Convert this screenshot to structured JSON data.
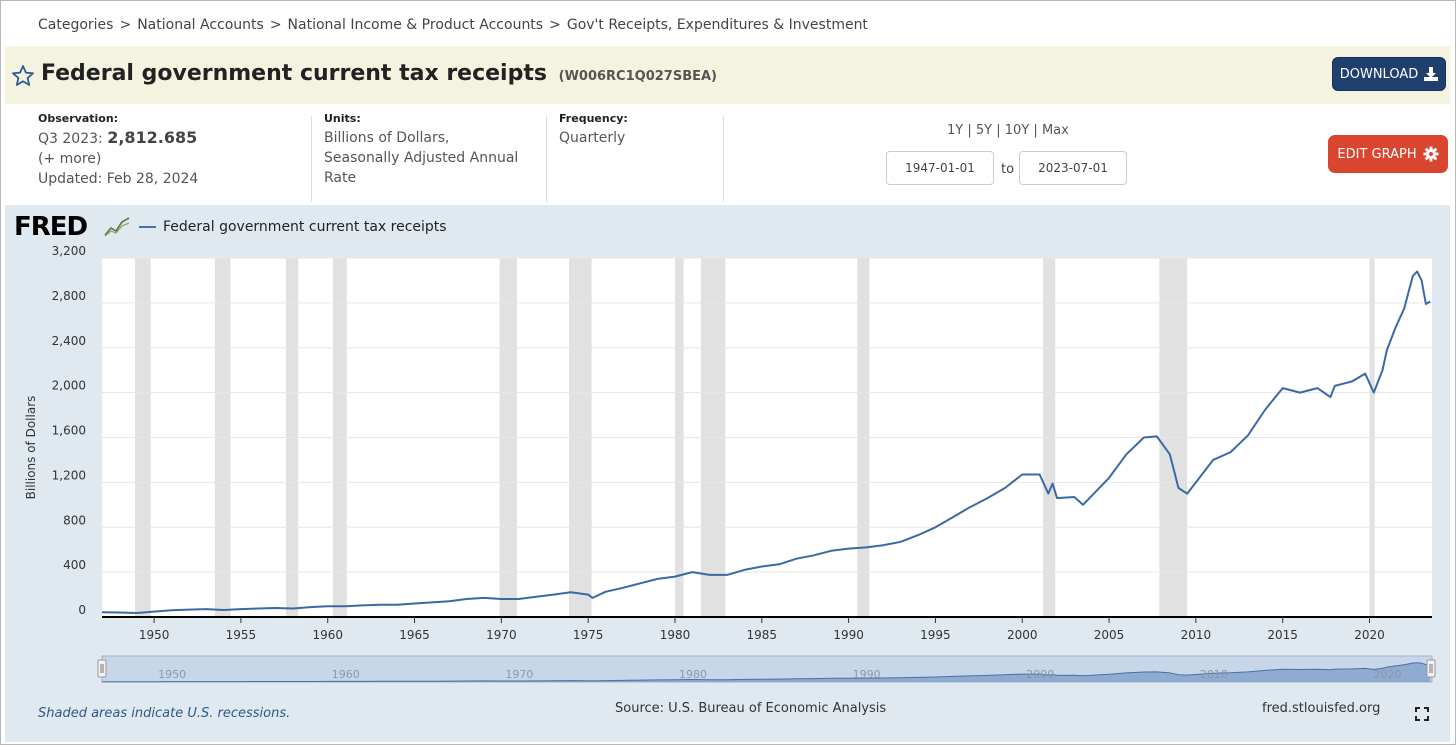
{
  "breadcrumb": [
    "Categories",
    "National Accounts",
    "National Income & Product Accounts",
    "Gov't Receipts, Expenditures & Investment"
  ],
  "breadcrumb_sep": ">",
  "header": {
    "title": "Federal government current tax receipts",
    "series_id": "(W006RC1Q027SBEA)",
    "download_label": "DOWNLOAD",
    "edit_label": "EDIT GRAPH"
  },
  "observation": {
    "label": "Observation:",
    "period": "Q3 2023:",
    "value": "2,812.685",
    "more": "(+ more)",
    "updated": "Updated: Feb 28, 2024"
  },
  "units": {
    "label": "Units:",
    "line1": "Billions of Dollars,",
    "line2": "Seasonally Adjusted Annual",
    "line3": "Rate"
  },
  "frequency": {
    "label": "Frequency:",
    "value": "Quarterly"
  },
  "range": {
    "options": [
      "1Y",
      "5Y",
      "10Y",
      "Max"
    ],
    "sep": "|",
    "start": "1947-01-01",
    "to": "to",
    "end": "2023-07-01"
  },
  "logo": "FRED",
  "footer": {
    "note": "Shaded areas indicate U.S. recessions.",
    "source": "Source: U.S. Bureau of Economic Analysis",
    "site": "fred.stlouisfed.org"
  },
  "colors": {
    "line": "#3a6aa3",
    "recession": "#e1e1e1",
    "panel": "#e1e9f0",
    "download": "#1f3f6e",
    "edit": "#d9452f"
  },
  "chart_data": {
    "type": "line",
    "title": "Federal government current tax receipts",
    "ylabel": "Billions of Dollars",
    "xlim": [
      1947,
      2023.6
    ],
    "ylim": [
      0,
      3200
    ],
    "yticks": [
      0,
      400,
      800,
      1200,
      1600,
      2000,
      2400,
      2800,
      3200
    ],
    "ytick_labels": [
      "0",
      "400",
      "800",
      "1,200",
      "1,600",
      "2,000",
      "2,400",
      "2,800",
      "3,200"
    ],
    "xticks": [
      1950,
      1955,
      1960,
      1965,
      1970,
      1975,
      1980,
      1985,
      1990,
      1995,
      2000,
      2005,
      2010,
      2015,
      2020
    ],
    "navigator_ticks": [
      1950,
      1960,
      1970,
      1980,
      1990,
      2000,
      2010,
      2020
    ],
    "legend": "Federal government current tax receipts",
    "recessions": [
      [
        1948.9,
        1949.8
      ],
      [
        1953.5,
        1954.4
      ],
      [
        1957.6,
        1958.3
      ],
      [
        1960.3,
        1961.1
      ],
      [
        1969.9,
        1970.9
      ],
      [
        1973.9,
        1975.2
      ],
      [
        1980.0,
        1980.5
      ],
      [
        1981.5,
        1982.9
      ],
      [
        1990.5,
        1991.2
      ],
      [
        2001.2,
        2001.9
      ],
      [
        2007.9,
        2009.5
      ],
      [
        2020.0,
        2020.3
      ]
    ],
    "series": [
      {
        "name": "Federal government current tax receipts",
        "x": [
          1947,
          1948,
          1949,
          1950,
          1951,
          1952,
          1953,
          1954,
          1955,
          1956,
          1957,
          1958,
          1959,
          1960,
          1961,
          1962,
          1963,
          1964,
          1965,
          1966,
          1967,
          1968,
          1969,
          1970,
          1971,
          1972,
          1973,
          1974,
          1975,
          1975.25,
          1976,
          1977,
          1978,
          1979,
          1980,
          1981,
          1982,
          1983,
          1984,
          1985,
          1986,
          1987,
          1988,
          1989,
          1990,
          1991,
          1992,
          1993,
          1994,
          1995,
          1996,
          1997,
          1998,
          1999,
          2000,
          2001,
          2001.5,
          2001.75,
          2002,
          2003,
          2003.5,
          2004,
          2005,
          2006,
          2007,
          2007.75,
          2008.5,
          2009,
          2009.5,
          2010,
          2011,
          2012,
          2013,
          2014,
          2015,
          2016,
          2017,
          2017.75,
          2018,
          2019,
          2019.75,
          2020.25,
          2020.75,
          2021,
          2021.5,
          2022,
          2022.25,
          2022.5,
          2022.75,
          2023,
          2023.25,
          2023.5
        ],
        "values": [
          42,
          40,
          36,
          48,
          60,
          66,
          70,
          62,
          70,
          76,
          80,
          76,
          88,
          95,
          95,
          103,
          110,
          110,
          120,
          130,
          140,
          160,
          170,
          160,
          160,
          180,
          200,
          220,
          200,
          170,
          225,
          260,
          300,
          340,
          360,
          400,
          375,
          375,
          420,
          450,
          470,
          520,
          550,
          590,
          610,
          620,
          640,
          670,
          730,
          800,
          890,
          980,
          1060,
          1150,
          1270,
          1270,
          1100,
          1190,
          1060,
          1070,
          1000,
          1080,
          1240,
          1450,
          1600,
          1610,
          1450,
          1150,
          1100,
          1200,
          1400,
          1470,
          1620,
          1850,
          2040,
          2000,
          2040,
          1960,
          2060,
          2100,
          2170,
          2000,
          2200,
          2380,
          2580,
          2750,
          2900,
          3040,
          3080,
          3000,
          2790,
          2812
        ]
      }
    ]
  }
}
